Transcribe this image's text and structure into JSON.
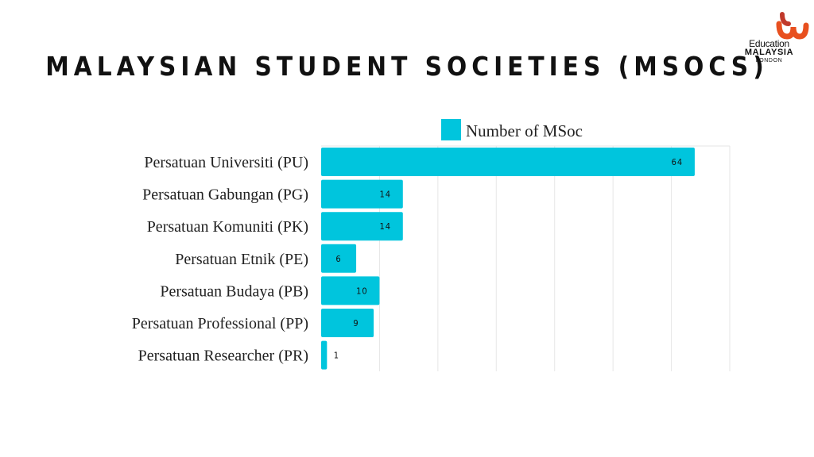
{
  "logo": {
    "line1": "Education",
    "line2": "MALAYSIA",
    "line3": "LONDON",
    "colors": [
      "#e8501f",
      "#c0392b"
    ]
  },
  "chart_data": {
    "type": "bar",
    "orientation": "horizontal",
    "title": "MALAYSIAN STUDENT SOCIETIES (MSOCS)",
    "categories": [
      "Persatuan Universiti (PU)",
      "Persatuan Gabungan (PG)",
      "Persatuan Komuniti (PK)",
      "Persatuan Etnik (PE)",
      "Persatuan Budaya (PB)",
      "Persatuan Professional (PP)",
      "Persatuan Researcher (PR)"
    ],
    "series": [
      {
        "name": "Number of MSoc",
        "values": [
          64,
          14,
          14,
          6,
          10,
          9,
          1
        ],
        "color": "#00c5dd"
      }
    ],
    "xlim": [
      0,
      70
    ],
    "grid": true,
    "legend": "top"
  }
}
